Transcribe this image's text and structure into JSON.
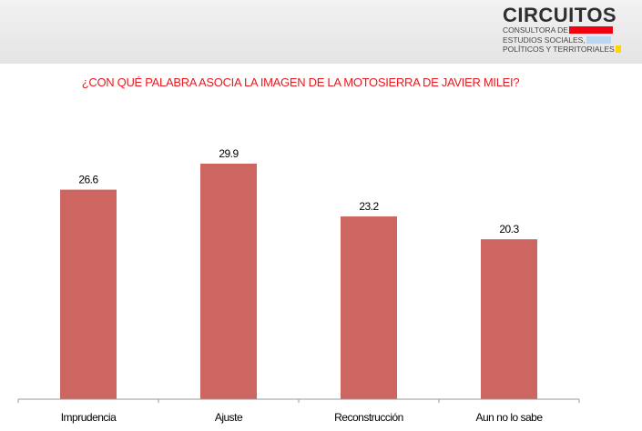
{
  "logo": {
    "name": "CIRCUITOS",
    "lines": [
      "CONSULTORA DE",
      "ESTUDIOS SOCIALES,",
      "POLÍTICOS Y TERRITORIALES"
    ],
    "colors": [
      "#f2000f",
      "#b9d6f2",
      "#ffd400"
    ]
  },
  "chart_data": {
    "type": "bar",
    "title": "¿CON QUÉ PALABRA ASOCIA LA IMAGEN DE LA MOTOSIERRA DE JAVIER MILEI?",
    "categories": [
      "Imprudencia",
      "Ajuste",
      "Reconstrucción",
      "Aun no lo sabe"
    ],
    "values": [
      26.6,
      29.9,
      23.2,
      20.3
    ],
    "value_labels": [
      "26.6",
      "29.9",
      "23.2",
      "20.3"
    ],
    "xlabel": "",
    "ylabel": "",
    "ylim": [
      0,
      34.5
    ],
    "grid": false,
    "bar_color": "#cd6660",
    "title_color": "#e8191f"
  }
}
